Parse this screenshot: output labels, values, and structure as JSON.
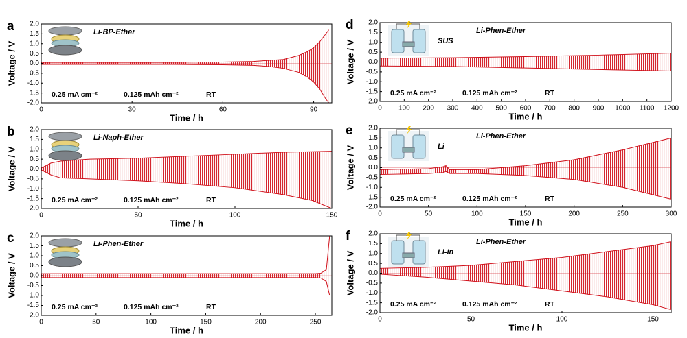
{
  "chart_data": [
    {
      "type": "range",
      "panel": "a",
      "title": "Li-BP-Ether",
      "annotations": [
        "0.25 mA cm⁻²",
        "0.125 mAh cm⁻²",
        "RT"
      ],
      "xlabel": "Time / h",
      "ylabel": "Voltage / V",
      "x": [
        0,
        10,
        20,
        30,
        40,
        50,
        60,
        70,
        75,
        80,
        85,
        88,
        90,
        92,
        94,
        95
      ],
      "series": [
        {
          "color": "#d0101a",
          "values": [
            0.05,
            0.05,
            0.05,
            0.05,
            0.05,
            0.06,
            0.07,
            0.1,
            0.15,
            0.2,
            0.4,
            0.6,
            0.8,
            1.1,
            1.5,
            1.7
          ]
        },
        {
          "color": "#d0101a",
          "values": [
            -0.05,
            -0.05,
            -0.05,
            -0.05,
            -0.05,
            -0.06,
            -0.07,
            -0.1,
            -0.15,
            -0.25,
            -0.45,
            -0.7,
            -0.95,
            -1.3,
            -1.8,
            -2.0
          ]
        }
      ],
      "xlim": [
        0,
        96
      ],
      "ylim": [
        -2,
        2
      ],
      "xticks": [
        0,
        30,
        60,
        90
      ],
      "yticks": [
        {
          "value": 2,
          "label": "2.0"
        },
        {
          "value": 1.5,
          "label": "1.5"
        },
        {
          "value": 1,
          "label": "1.0"
        },
        {
          "value": 0.5,
          "label": "0.5"
        },
        {
          "value": 0,
          "label": "0.0"
        },
        {
          "value": -0.5,
          "label": "-0.5"
        },
        {
          "value": -1,
          "label": "-1.0"
        },
        {
          "value": -1.5,
          "label": "-1.5"
        },
        {
          "value": -2,
          "label": "-2.0"
        }
      ]
    },
    {
      "type": "range",
      "panel": "b",
      "title": "Li-Naph-Ether",
      "annotations": [
        "0.25 mA cm⁻²",
        "0.125 mAh cm⁻²",
        "RT"
      ],
      "xlabel": "Time / h",
      "ylabel": "Voltage / V",
      "x": [
        0,
        5,
        10,
        25,
        50,
        75,
        100,
        125,
        140,
        150
      ],
      "series": [
        {
          "color": "#d0101a",
          "values": [
            0.05,
            0.3,
            0.4,
            0.5,
            0.55,
            0.65,
            0.75,
            0.85,
            0.88,
            0.9
          ]
        },
        {
          "color": "#d0101a",
          "values": [
            -0.05,
            -0.3,
            -0.45,
            -0.5,
            -0.6,
            -0.75,
            -0.95,
            -1.3,
            -1.6,
            -2.0
          ]
        }
      ],
      "xlim": [
        0,
        150
      ],
      "ylim": [
        -2,
        2
      ],
      "xticks": [
        0,
        50,
        100,
        150
      ],
      "yticks": [
        {
          "value": 2,
          "label": "2.0"
        },
        {
          "value": 1.5,
          "label": "1.5"
        },
        {
          "value": 1,
          "label": "1.0"
        },
        {
          "value": 0.5,
          "label": "0.5"
        },
        {
          "value": 0,
          "label": "0.0"
        },
        {
          "value": -0.5,
          "label": "-0.5"
        },
        {
          "value": -1,
          "label": "-1.0"
        },
        {
          "value": -1.5,
          "label": "-1.5"
        },
        {
          "value": -2,
          "label": "-2.0"
        }
      ]
    },
    {
      "type": "range",
      "panel": "c",
      "title": "Li-Phen-Ether",
      "annotations": [
        "0.25 mA cm⁻²",
        "0.125 mAh cm⁻²",
        "RT"
      ],
      "xlabel": "Time / h",
      "ylabel": "Voltage / V",
      "x": [
        0,
        50,
        100,
        150,
        200,
        250,
        255,
        260,
        263
      ],
      "series": [
        {
          "color": "#d0101a",
          "values": [
            0.1,
            0.1,
            0.1,
            0.1,
            0.1,
            0.1,
            0.12,
            0.3,
            2.0
          ]
        },
        {
          "color": "#d0101a",
          "values": [
            -0.1,
            -0.1,
            -0.1,
            -0.1,
            -0.1,
            -0.1,
            -0.12,
            -0.3,
            -1.0
          ]
        }
      ],
      "xlim": [
        0,
        265
      ],
      "ylim": [
        -2,
        2
      ],
      "xticks": [
        0,
        50,
        100,
        150,
        200,
        250
      ],
      "yticks": [
        {
          "value": 2,
          "label": "2.0"
        },
        {
          "value": 1.5,
          "label": "1.5"
        },
        {
          "value": 1,
          "label": "1.0"
        },
        {
          "value": 0.5,
          "label": "0.5"
        },
        {
          "value": 0,
          "label": "0.0"
        },
        {
          "value": -0.5,
          "label": "-0.5"
        },
        {
          "value": -1,
          "label": "-1.0"
        },
        {
          "value": -1.5,
          "label": "-1.5"
        },
        {
          "value": -2,
          "label": "-2.0"
        }
      ]
    },
    {
      "type": "range",
      "panel": "d",
      "title": "Li-Phen-Ether",
      "electrode": "SUS",
      "annotations": [
        "0.25 mA cm⁻²",
        "0.125 mAh cm⁻²",
        "RT"
      ],
      "xlabel": "Time / h",
      "ylabel": "Voltage / V",
      "x": [
        0,
        300,
        600,
        900,
        1200
      ],
      "series": [
        {
          "color": "#d0101a",
          "values": [
            0.2,
            0.22,
            0.28,
            0.35,
            0.45
          ]
        },
        {
          "color": "#d0101a",
          "values": [
            -0.2,
            -0.22,
            -0.3,
            -0.38,
            -0.45
          ]
        }
      ],
      "xlim": [
        0,
        1200
      ],
      "ylim": [
        -2,
        2
      ],
      "xticks": [
        0,
        100,
        200,
        300,
        400,
        500,
        600,
        700,
        800,
        900,
        1000,
        1100,
        1200
      ],
      "yticks": [
        {
          "value": 2,
          "label": "2.0"
        },
        {
          "value": 1.5,
          "label": "1.5"
        },
        {
          "value": 1,
          "label": "1.0"
        },
        {
          "value": 0.5,
          "label": "0.5"
        },
        {
          "value": 0,
          "label": "0.0"
        },
        {
          "value": -0.5,
          "label": "-0.5"
        },
        {
          "value": -1,
          "label": "-1.0"
        },
        {
          "value": -1.5,
          "label": "-1.5"
        },
        {
          "value": -2,
          "label": "-2.0"
        }
      ]
    },
    {
      "type": "range",
      "panel": "e",
      "title": "Li-Phen-Ether",
      "electrode": "Li",
      "annotations": [
        "0.25 mA cm⁻²",
        "0.125 mAh cm⁻²",
        "RT"
      ],
      "xlabel": "Time / h",
      "ylabel": "Voltage / V",
      "x": [
        0,
        50,
        65,
        68,
        72,
        100,
        150,
        200,
        250,
        300
      ],
      "series": [
        {
          "color": "#d0101a",
          "values": [
            -0.1,
            -0.05,
            0.05,
            0.1,
            -0.1,
            -0.1,
            0.1,
            0.4,
            0.9,
            1.5
          ]
        },
        {
          "color": "#d0101a",
          "values": [
            -0.35,
            -0.3,
            -0.25,
            -0.2,
            -0.3,
            -0.3,
            -0.4,
            -0.6,
            -1.0,
            -1.6
          ]
        }
      ],
      "xlim": [
        0,
        300
      ],
      "ylim": [
        -2,
        2
      ],
      "xticks": [
        0,
        50,
        100,
        150,
        200,
        250,
        300
      ],
      "yticks": [
        {
          "value": 2,
          "label": "2.0"
        },
        {
          "value": 1.5,
          "label": "1.5"
        },
        {
          "value": 1,
          "label": "1.0"
        },
        {
          "value": 0.5,
          "label": "0.5"
        },
        {
          "value": 0,
          "label": "0.0"
        },
        {
          "value": -0.5,
          "label": "-0.5"
        },
        {
          "value": -1,
          "label": "-1.0"
        },
        {
          "value": -1.5,
          "label": "-1.5"
        },
        {
          "value": -2,
          "label": "-2.0"
        }
      ]
    },
    {
      "type": "range",
      "panel": "f",
      "title": "Li-Phen-Ether",
      "electrode": "Li-In",
      "annotations": [
        "0.25 mA cm⁻²",
        "0.125 mAh cm⁻²",
        "RT"
      ],
      "xlabel": "Time / h",
      "ylabel": "Voltage / V",
      "x": [
        0,
        25,
        50,
        75,
        100,
        125,
        150,
        160
      ],
      "series": [
        {
          "color": "#d0101a",
          "values": [
            0.25,
            0.3,
            0.4,
            0.6,
            0.8,
            1.1,
            1.4,
            1.6
          ]
        },
        {
          "color": "#d0101a",
          "values": [
            -0.05,
            -0.2,
            -0.4,
            -0.6,
            -0.9,
            -1.2,
            -1.6,
            -1.85
          ]
        }
      ],
      "xlim": [
        0,
        160
      ],
      "ylim": [
        -2,
        2
      ],
      "xticks": [
        0,
        50,
        100,
        150
      ],
      "yticks": [
        {
          "value": 2,
          "label": "2.0"
        },
        {
          "value": 1.5,
          "label": "1.5"
        },
        {
          "value": 1,
          "label": "1.0"
        },
        {
          "value": 0.5,
          "label": "0.5"
        },
        {
          "value": 0,
          "label": "0.0"
        },
        {
          "value": -0.5,
          "label": "-0.5"
        },
        {
          "value": -1,
          "label": "-1.0"
        },
        {
          "value": -1.5,
          "label": "-1.5"
        },
        {
          "value": -2,
          "label": "-2.0"
        }
      ]
    }
  ]
}
